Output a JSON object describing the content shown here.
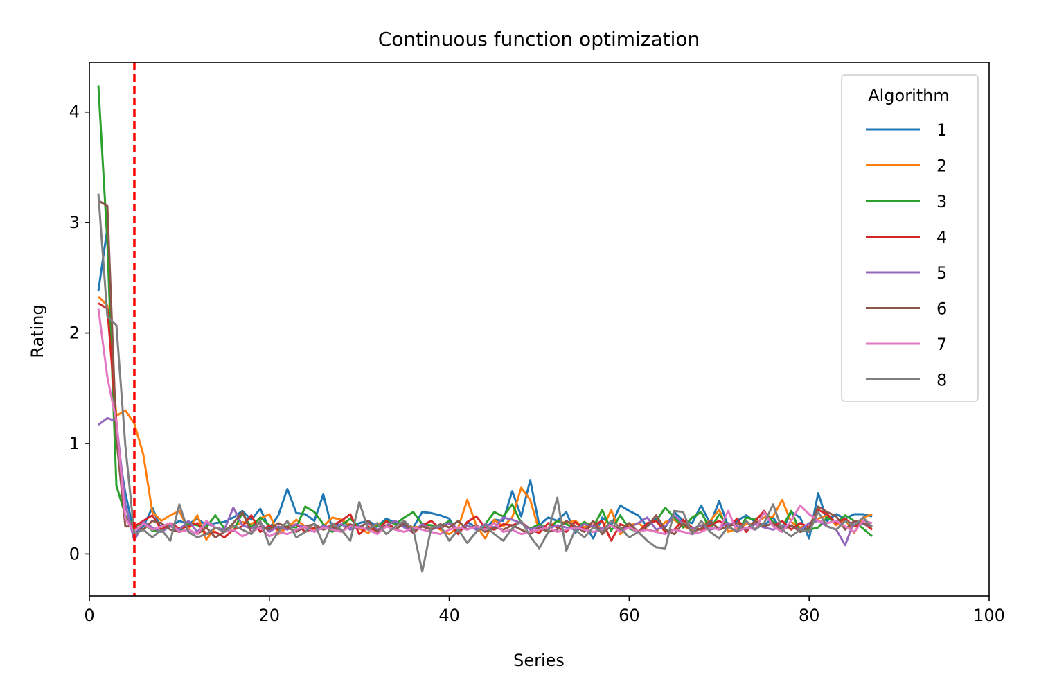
{
  "chart_data": {
    "type": "line",
    "title": "Continuous function optimization",
    "xlabel": "Series",
    "ylabel": "Rating",
    "xlim": [
      0,
      100
    ],
    "ylim": [
      -0.38,
      4.45
    ],
    "xticks": [
      0,
      20,
      40,
      60,
      80,
      100
    ],
    "yticks": [
      0,
      1,
      2,
      3,
      4
    ],
    "grid": false,
    "legend": {
      "title": "Algorithm",
      "placement": "top-right"
    },
    "vline": {
      "x": 5,
      "color": "#ff0000",
      "style": "dashed"
    },
    "x_start": 1,
    "series": [
      {
        "name": "1",
        "color": "#1f77b4",
        "values": [
          2.38,
          2.95,
          1.05,
          0.55,
          0.18,
          0.25,
          0.42,
          0.22,
          0.25,
          0.3,
          0.27,
          0.32,
          0.26,
          0.28,
          0.29,
          0.33,
          0.39,
          0.31,
          0.41,
          0.23,
          0.35,
          0.59,
          0.37,
          0.36,
          0.3,
          0.54,
          0.22,
          0.31,
          0.24,
          0.28,
          0.3,
          0.25,
          0.32,
          0.28,
          0.26,
          0.24,
          0.38,
          0.37,
          0.35,
          0.32,
          0.18,
          0.29,
          0.24,
          0.23,
          0.31,
          0.3,
          0.57,
          0.34,
          0.67,
          0.26,
          0.33,
          0.3,
          0.38,
          0.19,
          0.28,
          0.14,
          0.33,
          0.26,
          0.44,
          0.39,
          0.35,
          0.25,
          0.32,
          0.24,
          0.38,
          0.3,
          0.28,
          0.44,
          0.27,
          0.48,
          0.25,
          0.3,
          0.35,
          0.29,
          0.26,
          0.33,
          0.21,
          0.38,
          0.33,
          0.14,
          0.55,
          0.3,
          0.36,
          0.32,
          0.36,
          0.36,
          0.34
        ]
      },
      {
        "name": "2",
        "color": "#ff7f0e",
        "values": [
          2.33,
          2.25,
          1.25,
          1.3,
          1.18,
          0.9,
          0.38,
          0.3,
          0.35,
          0.39,
          0.22,
          0.35,
          0.13,
          0.24,
          0.2,
          0.25,
          0.29,
          0.27,
          0.32,
          0.36,
          0.18,
          0.24,
          0.31,
          0.25,
          0.22,
          0.25,
          0.33,
          0.31,
          0.26,
          0.23,
          0.19,
          0.28,
          0.25,
          0.22,
          0.28,
          0.24,
          0.25,
          0.26,
          0.22,
          0.18,
          0.24,
          0.49,
          0.26,
          0.14,
          0.31,
          0.25,
          0.33,
          0.6,
          0.49,
          0.21,
          0.24,
          0.3,
          0.28,
          0.3,
          0.24,
          0.29,
          0.22,
          0.4,
          0.18,
          0.26,
          0.28,
          0.22,
          0.2,
          0.29,
          0.31,
          0.25,
          0.22,
          0.26,
          0.3,
          0.4,
          0.2,
          0.23,
          0.27,
          0.28,
          0.33,
          0.34,
          0.49,
          0.29,
          0.24,
          0.27,
          0.32,
          0.35,
          0.26,
          0.31,
          0.19,
          0.33,
          0.36
        ]
      },
      {
        "name": "3",
        "color": "#2ca02c",
        "values": [
          4.24,
          2.82,
          0.62,
          0.35,
          0.25,
          0.28,
          0.21,
          0.2,
          0.26,
          0.2,
          0.28,
          0.26,
          0.24,
          0.35,
          0.23,
          0.21,
          0.37,
          0.24,
          0.33,
          0.26,
          0.24,
          0.25,
          0.24,
          0.43,
          0.38,
          0.27,
          0.2,
          0.26,
          0.32,
          0.24,
          0.22,
          0.25,
          0.3,
          0.27,
          0.33,
          0.38,
          0.27,
          0.26,
          0.25,
          0.3,
          0.2,
          0.26,
          0.22,
          0.27,
          0.38,
          0.34,
          0.45,
          0.28,
          0.23,
          0.27,
          0.22,
          0.3,
          0.27,
          0.23,
          0.29,
          0.24,
          0.4,
          0.21,
          0.35,
          0.23,
          0.2,
          0.27,
          0.3,
          0.42,
          0.33,
          0.24,
          0.33,
          0.38,
          0.22,
          0.36,
          0.25,
          0.2,
          0.33,
          0.31,
          0.37,
          0.29,
          0.24,
          0.39,
          0.2,
          0.22,
          0.24,
          0.33,
          0.28,
          0.35,
          0.3,
          0.23,
          0.16
        ]
      },
      {
        "name": "4",
        "color": "#d62728",
        "values": [
          2.27,
          2.22,
          1.2,
          0.32,
          0.25,
          0.3,
          0.35,
          0.22,
          0.28,
          0.23,
          0.25,
          0.28,
          0.18,
          0.2,
          0.15,
          0.22,
          0.25,
          0.35,
          0.2,
          0.26,
          0.22,
          0.24,
          0.27,
          0.2,
          0.24,
          0.23,
          0.26,
          0.3,
          0.36,
          0.18,
          0.25,
          0.2,
          0.3,
          0.22,
          0.28,
          0.19,
          0.26,
          0.3,
          0.23,
          0.28,
          0.18,
          0.29,
          0.34,
          0.24,
          0.22,
          0.27,
          0.26,
          0.29,
          0.22,
          0.19,
          0.28,
          0.24,
          0.2,
          0.29,
          0.22,
          0.26,
          0.3,
          0.12,
          0.27,
          0.24,
          0.2,
          0.28,
          0.3,
          0.2,
          0.22,
          0.31,
          0.24,
          0.22,
          0.26,
          0.3,
          0.24,
          0.32,
          0.2,
          0.3,
          0.39,
          0.25,
          0.3,
          0.22,
          0.28,
          0.24,
          0.4,
          0.36,
          0.28,
          0.32,
          0.25,
          0.28,
          0.22
        ]
      },
      {
        "name": "5",
        "color": "#9467bd",
        "values": [
          1.17,
          1.23,
          1.2,
          0.45,
          0.12,
          0.29,
          0.24,
          0.2,
          0.25,
          0.22,
          0.3,
          0.2,
          0.28,
          0.24,
          0.22,
          0.42,
          0.26,
          0.23,
          0.28,
          0.2,
          0.25,
          0.22,
          0.27,
          0.24,
          0.2,
          0.26,
          0.23,
          0.27,
          0.22,
          0.25,
          0.28,
          0.22,
          0.26,
          0.3,
          0.24,
          0.2,
          0.27,
          0.22,
          0.25,
          0.28,
          0.23,
          0.26,
          0.22,
          0.27,
          0.24,
          0.33,
          0.31,
          0.28,
          0.22,
          0.25,
          0.23,
          0.26,
          0.24,
          0.22,
          0.27,
          0.25,
          0.23,
          0.26,
          0.22,
          0.24,
          0.28,
          0.33,
          0.22,
          0.25,
          0.35,
          0.27,
          0.23,
          0.26,
          0.22,
          0.24,
          0.28,
          0.25,
          0.22,
          0.27,
          0.24,
          0.22,
          0.26,
          0.25,
          0.22,
          0.28,
          0.3,
          0.25,
          0.22,
          0.08,
          0.3,
          0.27,
          0.25
        ]
      },
      {
        "name": "6",
        "color": "#8c564b",
        "values": [
          3.2,
          3.15,
          1.05,
          0.25,
          0.25,
          0.22,
          0.3,
          0.28,
          0.22,
          0.2,
          0.22,
          0.18,
          0.24,
          0.15,
          0.2,
          0.28,
          0.38,
          0.2,
          0.25,
          0.22,
          0.28,
          0.24,
          0.2,
          0.25,
          0.27,
          0.22,
          0.25,
          0.2,
          0.27,
          0.23,
          0.3,
          0.2,
          0.26,
          0.22,
          0.28,
          0.2,
          0.25,
          0.22,
          0.27,
          0.24,
          0.3,
          0.22,
          0.26,
          0.2,
          0.24,
          0.22,
          0.26,
          0.22,
          0.18,
          0.24,
          0.2,
          0.22,
          0.3,
          0.25,
          0.2,
          0.3,
          0.18,
          0.26,
          0.22,
          0.28,
          0.2,
          0.25,
          0.35,
          0.22,
          0.18,
          0.28,
          0.2,
          0.23,
          0.3,
          0.22,
          0.25,
          0.28,
          0.22,
          0.3,
          0.25,
          0.28,
          0.22,
          0.26,
          0.2,
          0.24,
          0.43,
          0.38,
          0.34,
          0.22,
          0.3,
          0.28,
          0.25
        ]
      },
      {
        "name": "7",
        "color": "#e377c2",
        "values": [
          2.22,
          1.6,
          1.2,
          0.32,
          0.2,
          0.28,
          0.22,
          0.25,
          0.28,
          0.2,
          0.22,
          0.18,
          0.3,
          0.24,
          0.2,
          0.22,
          0.16,
          0.2,
          0.24,
          0.16,
          0.2,
          0.18,
          0.22,
          0.25,
          0.2,
          0.24,
          0.22,
          0.2,
          0.25,
          0.24,
          0.22,
          0.18,
          0.25,
          0.22,
          0.2,
          0.24,
          0.22,
          0.2,
          0.18,
          0.22,
          0.24,
          0.22,
          0.25,
          0.22,
          0.28,
          0.2,
          0.22,
          0.18,
          0.2,
          0.22,
          0.24,
          0.2,
          0.22,
          0.24,
          0.22,
          0.2,
          0.22,
          0.26,
          0.2,
          0.24,
          0.2,
          0.22,
          0.2,
          0.18,
          0.22,
          0.2,
          0.18,
          0.2,
          0.24,
          0.22,
          0.39,
          0.2,
          0.24,
          0.22,
          0.38,
          0.25,
          0.2,
          0.3,
          0.44,
          0.36,
          0.3,
          0.28,
          0.3,
          0.25,
          0.2,
          0.3,
          0.28
        ]
      },
      {
        "name": "8",
        "color": "#7f7f7f",
        "values": [
          3.26,
          2.15,
          2.07,
          0.98,
          0.18,
          0.22,
          0.15,
          0.22,
          0.12,
          0.45,
          0.2,
          0.15,
          0.18,
          0.24,
          0.2,
          0.26,
          0.22,
          0.18,
          0.3,
          0.08,
          0.2,
          0.3,
          0.15,
          0.2,
          0.28,
          0.09,
          0.28,
          0.22,
          0.12,
          0.47,
          0.22,
          0.28,
          0.18,
          0.25,
          0.3,
          0.22,
          -0.16,
          0.24,
          0.26,
          0.12,
          0.22,
          0.1,
          0.2,
          0.26,
          0.18,
          0.12,
          0.23,
          0.3,
          0.16,
          0.05,
          0.2,
          0.51,
          0.03,
          0.22,
          0.15,
          0.24,
          0.2,
          0.3,
          0.24,
          0.15,
          0.2,
          0.12,
          0.06,
          0.05,
          0.39,
          0.38,
          0.18,
          0.3,
          0.2,
          0.14,
          0.25,
          0.2,
          0.3,
          0.22,
          0.28,
          0.45,
          0.22,
          0.16,
          0.22,
          0.2,
          0.38,
          0.25,
          0.22,
          0.3,
          0.26,
          0.33,
          0.24
        ]
      }
    ]
  }
}
